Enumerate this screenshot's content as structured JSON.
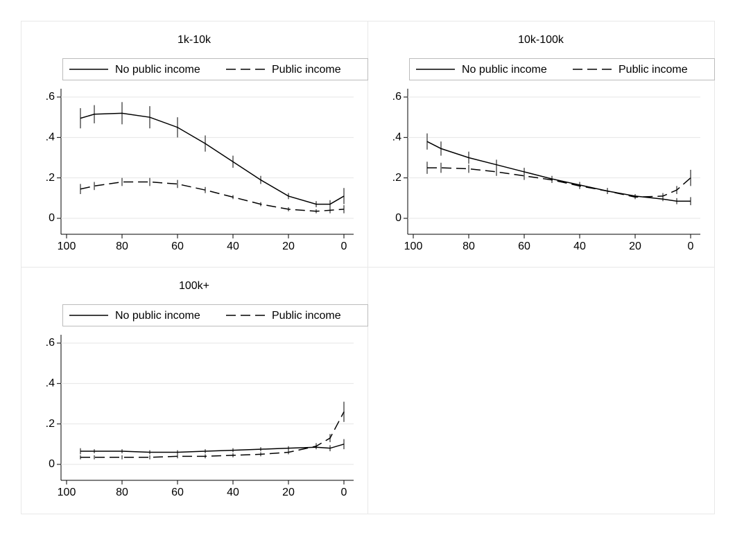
{
  "chart_data": [
    {
      "type": "line",
      "title": "1k-10k",
      "x": [
        95,
        90,
        80,
        70,
        60,
        50,
        40,
        30,
        20,
        10,
        5,
        0
      ],
      "xlim": [
        102,
        -3.5
      ],
      "ylim": [
        -0.08,
        0.64
      ],
      "xticks": [
        100,
        80,
        60,
        40,
        20,
        0
      ],
      "yticks": [
        0,
        {
          "value": 0.2,
          "label": ".2"
        },
        {
          "value": 0.4,
          "label": ".4"
        },
        {
          "value": 0.6,
          "label": ".6"
        }
      ],
      "error_color": "#808080",
      "series": [
        {
          "name": "No public income",
          "color": "#000000",
          "line_style": "solid",
          "values": [
            0.495,
            0.515,
            0.52,
            0.5,
            0.45,
            0.37,
            0.28,
            0.19,
            0.11,
            0.07,
            0.07,
            0.11
          ],
          "errors": [
            0.05,
            0.045,
            0.055,
            0.055,
            0.05,
            0.04,
            0.03,
            0.02,
            0.015,
            0.015,
            0.02,
            0.04
          ]
        },
        {
          "name": "Public income",
          "color": "#000000",
          "line_style": "dashed",
          "values": [
            0.145,
            0.16,
            0.18,
            0.18,
            0.17,
            0.14,
            0.105,
            0.07,
            0.045,
            0.035,
            0.04,
            0.045
          ],
          "errors": [
            0.025,
            0.02,
            0.02,
            0.02,
            0.02,
            0.015,
            0.01,
            0.01,
            0.01,
            0.01,
            0.015,
            0.02
          ]
        }
      ]
    },
    {
      "type": "line",
      "title": "10k-100k",
      "x": [
        95,
        90,
        80,
        70,
        60,
        50,
        40,
        30,
        20,
        10,
        5,
        0
      ],
      "xlim": [
        102,
        -3.5
      ],
      "ylim": [
        -0.08,
        0.64
      ],
      "xticks": [
        100,
        80,
        60,
        40,
        20,
        0
      ],
      "yticks": [
        0,
        {
          "value": 0.2,
          "label": ".2"
        },
        {
          "value": 0.4,
          "label": ".4"
        },
        {
          "value": 0.6,
          "label": ".6"
        }
      ],
      "error_color": "#808080",
      "series": [
        {
          "name": "No public income",
          "color": "#000000",
          "line_style": "solid",
          "values": [
            0.38,
            0.345,
            0.3,
            0.265,
            0.23,
            0.195,
            0.165,
            0.135,
            0.11,
            0.095,
            0.085,
            0.085
          ],
          "errors": [
            0.04,
            0.035,
            0.03,
            0.025,
            0.02,
            0.015,
            0.015,
            0.015,
            0.01,
            0.01,
            0.015,
            0.02
          ]
        },
        {
          "name": "Public income",
          "color": "#000000",
          "line_style": "dashed",
          "values": [
            0.25,
            0.25,
            0.245,
            0.23,
            0.21,
            0.19,
            0.16,
            0.135,
            0.105,
            0.11,
            0.14,
            0.2
          ],
          "errors": [
            0.03,
            0.025,
            0.02,
            0.02,
            0.02,
            0.015,
            0.015,
            0.015,
            0.01,
            0.015,
            0.02,
            0.04
          ]
        }
      ]
    },
    {
      "type": "line",
      "title": "100k+",
      "x": [
        95,
        90,
        80,
        70,
        60,
        50,
        40,
        30,
        20,
        10,
        5,
        0
      ],
      "xlim": [
        102,
        -3.5
      ],
      "ylim": [
        -0.08,
        0.64
      ],
      "xticks": [
        100,
        80,
        60,
        40,
        20,
        0
      ],
      "yticks": [
        0,
        {
          "value": 0.2,
          "label": ".2"
        },
        {
          "value": 0.4,
          "label": ".4"
        },
        {
          "value": 0.6,
          "label": ".6"
        }
      ],
      "error_color": "#808080",
      "series": [
        {
          "name": "No public income",
          "color": "#000000",
          "line_style": "solid",
          "values": [
            0.065,
            0.065,
            0.065,
            0.06,
            0.06,
            0.065,
            0.07,
            0.075,
            0.08,
            0.085,
            0.08,
            0.1
          ],
          "errors": [
            0.015,
            0.01,
            0.01,
            0.01,
            0.01,
            0.01,
            0.01,
            0.01,
            0.01,
            0.01,
            0.015,
            0.025
          ]
        },
        {
          "name": "Public income",
          "color": "#000000",
          "line_style": "dashed",
          "values": [
            0.035,
            0.035,
            0.035,
            0.035,
            0.04,
            0.04,
            0.045,
            0.05,
            0.06,
            0.09,
            0.13,
            0.26
          ],
          "errors": [
            0.01,
            0.01,
            0.01,
            0.01,
            0.01,
            0.01,
            0.01,
            0.01,
            0.01,
            0.015,
            0.02,
            0.05
          ]
        }
      ]
    }
  ]
}
